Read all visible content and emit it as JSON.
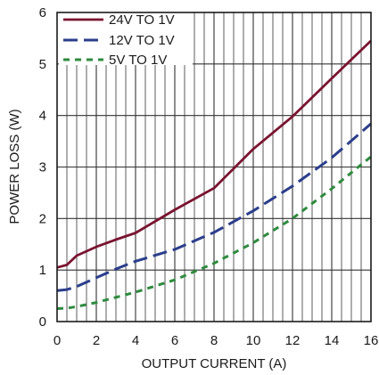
{
  "chart_data": {
    "type": "line",
    "xlabel": "OUTPUT CURRENT (A)",
    "ylabel": "POWER LOSS (W)",
    "xlim": [
      0,
      16
    ],
    "ylim": [
      0,
      6
    ],
    "x_ticks": [
      "0",
      "2",
      "4",
      "6",
      "8",
      "10",
      "12",
      "14",
      "16"
    ],
    "y_ticks": [
      "0",
      "1",
      "2",
      "3",
      "4",
      "5",
      "6"
    ],
    "x_minor_step": 0.5,
    "grid": true,
    "legend_position": "top-left",
    "series": [
      {
        "name": "24V TO 1V",
        "color": "#7a1430",
        "dash": "solid",
        "x": [
          0,
          0.5,
          1,
          2,
          3,
          4,
          6,
          8,
          9,
          10,
          12,
          14,
          16
        ],
        "y": [
          1.05,
          1.1,
          1.28,
          1.45,
          1.59,
          1.72,
          2.17,
          2.59,
          2.97,
          3.35,
          3.98,
          4.72,
          5.45
        ]
      },
      {
        "name": "12V TO 1V",
        "color": "#2b3e8c",
        "dash": "long-dash",
        "x": [
          0,
          0.5,
          1,
          2,
          3,
          4,
          6,
          8,
          10,
          12,
          14,
          16
        ],
        "y": [
          0.6,
          0.62,
          0.68,
          0.85,
          1.02,
          1.17,
          1.4,
          1.73,
          2.15,
          2.63,
          3.18,
          3.84
        ]
      },
      {
        "name": "5V TO 1V",
        "color": "#2e8b3e",
        "dash": "short-dash",
        "x": [
          0,
          0.5,
          1,
          2,
          4,
          6,
          8,
          10,
          12,
          14,
          16
        ],
        "y": [
          0.25,
          0.26,
          0.29,
          0.37,
          0.57,
          0.81,
          1.13,
          1.53,
          2.0,
          2.58,
          3.2
        ]
      }
    ]
  }
}
